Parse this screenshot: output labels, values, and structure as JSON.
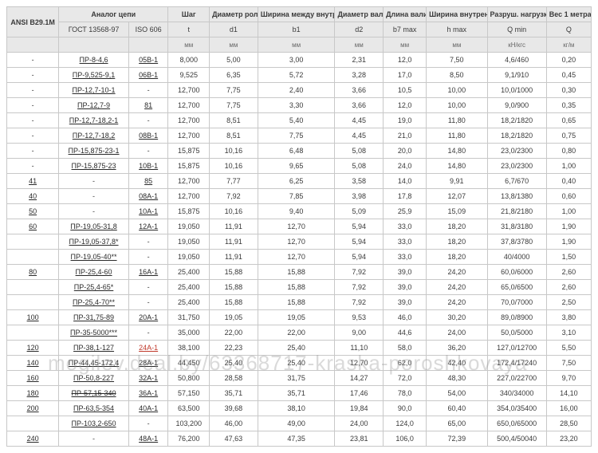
{
  "headers": {
    "ansi": "ANSI B29.1M",
    "analog": "Аналог цепи",
    "shag": "Шаг",
    "d_rol": "Диаметр ролика",
    "width_bw": "Ширина между внутренними пластинами",
    "d_val": "Диаметр валика",
    "l_val": "Длина валика",
    "w_inner": "Ширина внутренней пластины",
    "load": "Разруш. нагрузка",
    "weight": "Вес 1 метра",
    "gost": "ГОСТ 13568-97",
    "iso": "ISO 606",
    "t": "t",
    "d1": "d1",
    "b1": "b1",
    "d2": "d2",
    "b7": "b7 max",
    "h": "h max",
    "q": "Q min",
    "qw": "Q",
    "mm": "мм",
    "kn": "кН/кгс",
    "kgm": "кг/м"
  },
  "watermark": "mogilev.deal.by/63368717-kraska-poroshkovaya",
  "rows": [
    {
      "ansi": "-",
      "gost": "ПР-8-4,6",
      "iso": "05B-1",
      "t": "8,000",
      "d1": "5,00",
      "b1": "3,00",
      "d2": "2,31",
      "b7": "12,0",
      "h": "7,50",
      "q": "4,6/460",
      "qw": "0,20"
    },
    {
      "ansi": "-",
      "gost": "ПР-9,525-9,1",
      "iso": "06B-1",
      "t": "9,525",
      "d1": "6,35",
      "b1": "5,72",
      "d2": "3,28",
      "b7": "17,0",
      "h": "8,50",
      "q": "9,1/910",
      "qw": "0,45"
    },
    {
      "ansi": "-",
      "gost": "ПР-12,7-10-1",
      "iso": "-",
      "t": "12,700",
      "d1": "7,75",
      "b1": "2,40",
      "d2": "3,66",
      "b7": "10,5",
      "h": "10,00",
      "q": "10,0/1000",
      "qw": "0,30"
    },
    {
      "ansi": "-",
      "gost": "ПР-12,7-9",
      "iso": "81",
      "isoCls": "u",
      "t": "12,700",
      "d1": "7,75",
      "b1": "3,30",
      "d2": "3,66",
      "b7": "12,0",
      "h": "10,00",
      "q": "9,0/900",
      "qw": "0,35"
    },
    {
      "ansi": "-",
      "gost": "ПР-12,7-18,2-1",
      "iso": "-",
      "t": "12,700",
      "d1": "8,51",
      "b1": "5,40",
      "d2": "4,45",
      "b7": "19,0",
      "h": "11,80",
      "q": "18,2/1820",
      "qw": "0,65"
    },
    {
      "ansi": "-",
      "gost": "ПР-12,7-18,2",
      "iso": "08B-1",
      "t": "12,700",
      "d1": "8,51",
      "b1": "7,75",
      "d2": "4,45",
      "b7": "21,0",
      "h": "11,80",
      "q": "18,2/1820",
      "qw": "0,75"
    },
    {
      "ansi": "-",
      "gost": "ПР-15,875-23-1",
      "iso": "-",
      "t": "15,875",
      "d1": "10,16",
      "b1": "6,48",
      "d2": "5,08",
      "b7": "20,0",
      "h": "14,80",
      "q": "23,0/2300",
      "qw": "0,80"
    },
    {
      "ansi": "-",
      "gost": "ПР-15,875-23",
      "iso": "10B-1",
      "t": "15,875",
      "d1": "10,16",
      "b1": "9,65",
      "d2": "5,08",
      "b7": "24,0",
      "h": "14,80",
      "q": "23,0/2300",
      "qw": "1,00"
    },
    {
      "ansi": "41",
      "ansiCls": "u",
      "gost": "-",
      "iso": "85",
      "isoCls": "u",
      "t": "12,700",
      "d1": "7,77",
      "b1": "6,25",
      "d2": "3,58",
      "b7": "14,0",
      "h": "9,91",
      "q": "6,7/670",
      "qw": "0,40"
    },
    {
      "ansi": "40",
      "ansiCls": "u",
      "gost": "-",
      "iso": "08A-1",
      "t": "12,700",
      "d1": "7,92",
      "b1": "7,85",
      "d2": "3,98",
      "b7": "17,8",
      "h": "12,07",
      "q": "13,8/1380",
      "qw": "0,60"
    },
    {
      "ansi": "50",
      "ansiCls": "u",
      "gost": "-",
      "iso": "10A-1",
      "t": "15,875",
      "d1": "10,16",
      "b1": "9,40",
      "d2": "5,09",
      "b7": "25,9",
      "h": "15,09",
      "q": "21,8/2180",
      "qw": "1,00"
    },
    {
      "ansi": "60",
      "ansiCls": "u",
      "gost": "ПР-19,05-31,8",
      "iso": "12A-1",
      "t": "19,050",
      "d1": "11,91",
      "b1": "12,70",
      "d2": "5,94",
      "b7": "33,0",
      "h": "18,20",
      "q": "31,8/3180",
      "qw": "1,90"
    },
    {
      "ansi": "",
      "gost": "ПР-19,05-37,8*",
      "iso": "-",
      "t": "19,050",
      "d1": "11,91",
      "b1": "12,70",
      "d2": "5,94",
      "b7": "33,0",
      "h": "18,20",
      "q": "37,8/3780",
      "qw": "1,90"
    },
    {
      "ansi": "",
      "gost": "ПР-19,05-40**",
      "iso": "-",
      "t": "19,050",
      "d1": "11,91",
      "b1": "12,70",
      "d2": "5,94",
      "b7": "33,0",
      "h": "18,20",
      "q": "40/4000",
      "qw": "1,50"
    },
    {
      "ansi": "80",
      "ansiCls": "u",
      "gost": "ПР-25,4-60",
      "iso": "16A-1",
      "t": "25,400",
      "d1": "15,88",
      "b1": "15,88",
      "d2": "7,92",
      "b7": "39,0",
      "h": "24,20",
      "q": "60,0/6000",
      "qw": "2,60"
    },
    {
      "ansi": "",
      "gost": "ПР-25,4-65*",
      "iso": "-",
      "t": "25,400",
      "d1": "15,88",
      "b1": "15,88",
      "d2": "7,92",
      "b7": "39,0",
      "h": "24,20",
      "q": "65,0/6500",
      "qw": "2,60"
    },
    {
      "ansi": "",
      "gost": "ПР-25,4-70**",
      "iso": "-",
      "t": "25,400",
      "d1": "15,88",
      "b1": "15,88",
      "d2": "7,92",
      "b7": "39,0",
      "h": "24,20",
      "q": "70,0/7000",
      "qw": "2,50"
    },
    {
      "ansi": "100",
      "ansiCls": "u",
      "gost": "ПР-31,75-89",
      "iso": "20A-1",
      "t": "31,750",
      "d1": "19,05",
      "b1": "19,05",
      "d2": "9,53",
      "b7": "46,0",
      "h": "30,20",
      "q": "89,0/8900",
      "qw": "3,80"
    },
    {
      "ansi": "",
      "gost": "ПР-35-5000***",
      "iso": "-",
      "t": "35,000",
      "d1": "22,00",
      "b1": "22,00",
      "d2": "9,00",
      "b7": "44,6",
      "h": "24,00",
      "q": "50,0/5000",
      "qw": "3,10"
    },
    {
      "ansi": "120",
      "ansiCls": "u",
      "gost": "ПР-38,1-127",
      "iso": "24A-1",
      "isoCls": "u red",
      "t": "38,100",
      "d1": "22,23",
      "b1": "25,40",
      "d2": "11,10",
      "b7": "58,0",
      "h": "36,20",
      "q": "127,0/12700",
      "qw": "5,50"
    },
    {
      "ansi": "140",
      "ansiCls": "u",
      "gost": "ПР-44,45-172,4",
      "iso": "28A-1",
      "t": "44,450",
      "d1": "25,40",
      "b1": "25,40",
      "d2": "12,70",
      "b7": "62,0",
      "h": "42,40",
      "q": "172,4/17240",
      "qw": "7,50"
    },
    {
      "ansi": "160",
      "ansiCls": "u",
      "gost": "ПР-50,8-227",
      "iso": "32A-1",
      "t": "50,800",
      "d1": "28,58",
      "b1": "31,75",
      "d2": "14,27",
      "b7": "72,0",
      "h": "48,30",
      "q": "227,0/22700",
      "qw": "9,70"
    },
    {
      "ansi": "180",
      "ansiCls": "u",
      "gost": "",
      "gostCls": "strike",
      "gostV": "ПР-57,15-340",
      "iso": "36A-1",
      "t": "57,150",
      "d1": "35,71",
      "b1": "35,71",
      "d2": "17,46",
      "b7": "78,0",
      "h": "54,00",
      "q": "340/34000",
      "qw": "14,10"
    },
    {
      "ansi": "200",
      "ansiCls": "u",
      "gost": "ПР-63,5-354",
      "iso": "40A-1",
      "t": "63,500",
      "d1": "39,68",
      "b1": "38,10",
      "d2": "19,84",
      "b7": "90,0",
      "h": "60,40",
      "q": "354,0/35400",
      "qw": "16,00"
    },
    {
      "ansi": "",
      "gost": "ПР-103,2-650",
      "iso": "-",
      "t": "103,200",
      "d1": "46,00",
      "b1": "49,00",
      "d2": "24,00",
      "b7": "124,0",
      "h": "65,00",
      "q": "650,0/65000",
      "qw": "28,50"
    },
    {
      "ansi": "240",
      "ansiCls": "u",
      "gost": "-",
      "iso": "48A-1",
      "t": "76,200",
      "d1": "47,63",
      "b1": "47,35",
      "d2": "23,81",
      "b7": "106,0",
      "h": "72,39",
      "q": "500,4/50040",
      "qw": "23,20"
    }
  ]
}
